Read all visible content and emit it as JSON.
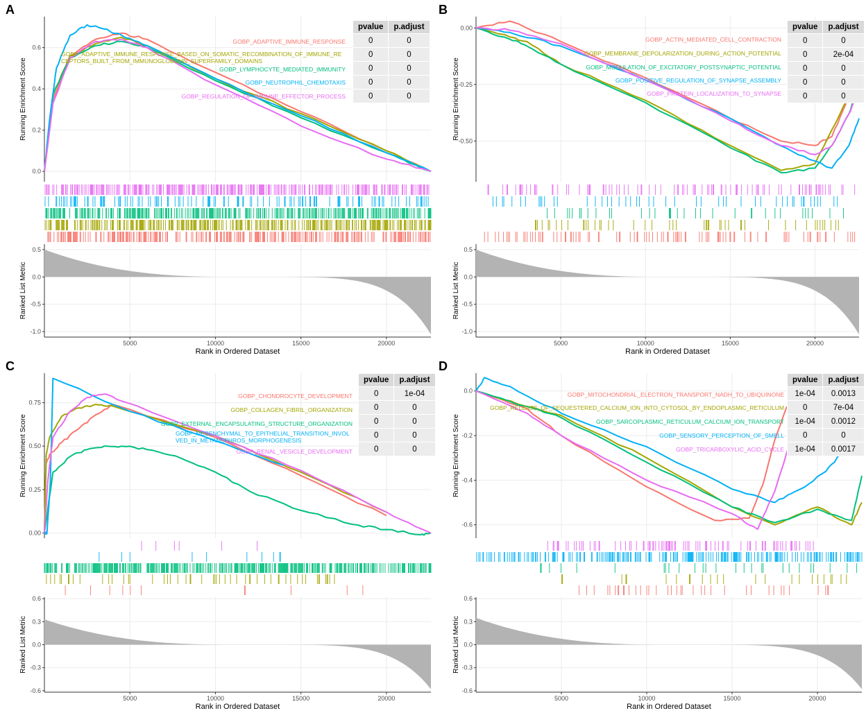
{
  "figure": {
    "colors": [
      "#f8766d",
      "#a3a500",
      "#00bf7d",
      "#00b0f6",
      "#e76bf3"
    ]
  },
  "chart_data": [
    {
      "type": "line",
      "panel": "A",
      "title": "",
      "ylabel": "Running Enrichment Score",
      "xlabel": "Rank in Ordered Dataset",
      "metric_ylabel": "Ranked List Metric",
      "xlim": [
        0,
        22600
      ],
      "ylim": [
        -0.05,
        0.75
      ],
      "yticks": [
        0.0,
        0.2,
        0.4,
        0.6
      ],
      "ytick_labels": [
        "0.0",
        "0.2",
        "0.4",
        "0.6"
      ],
      "xticks": [
        5000,
        10000,
        15000,
        20000
      ],
      "xtick_labels": [
        "5000",
        "10000",
        "15000",
        "20000"
      ],
      "metric_ylim": [
        -1.1,
        0.6
      ],
      "metric_yticks": [
        -1.0,
        -0.5,
        0.0,
        0.5
      ],
      "metric_ytick_labels": [
        "-1.0",
        "-0.5",
        "0.0",
        "0.5"
      ],
      "metric_pos": 0.5,
      "metric_neg": -1.05,
      "table_headers": [
        "pvalue",
        "p.adjust"
      ],
      "series": [
        {
          "name": "GOBP_ADAPTIVE_IMMUNE_RESPONSE",
          "pvalue": "0",
          "p_adjust": "0",
          "x": [
            0,
            500,
            1500,
            3000,
            4500,
            6000,
            10000,
            15000,
            20000,
            22600
          ],
          "y": [
            0,
            0.35,
            0.56,
            0.64,
            0.67,
            0.64,
            0.48,
            0.29,
            0.1,
            0.0
          ],
          "hit_density": 0.45,
          "hit_range": [
            0,
            22600
          ]
        },
        {
          "name": "GOBP_ADAPTIVE_IMMUNE_RESPONSE_BASED_ON_SOMATIC_RECOMBINATION_OF_IMMUNE_RECEPTORS_BUILT_FROM_IMMUNOGLOBULIN_SUPERFAMILY_DOMAINS",
          "pvalue": "0",
          "p_adjust": "0",
          "x": [
            0,
            500,
            1500,
            3000,
            4500,
            6000,
            10000,
            15000,
            20000,
            22600
          ],
          "y": [
            0,
            0.37,
            0.56,
            0.62,
            0.65,
            0.61,
            0.45,
            0.28,
            0.1,
            0.0
          ],
          "hit_density": 0.5,
          "hit_range": [
            0,
            22600
          ]
        },
        {
          "name": "GOBP_LYMPHOCYTE_MEDIATED_IMMUNITY",
          "pvalue": "0",
          "p_adjust": "0",
          "x": [
            0,
            500,
            1500,
            3000,
            4500,
            6000,
            10000,
            15000,
            20000,
            22600
          ],
          "y": [
            0,
            0.37,
            0.55,
            0.61,
            0.63,
            0.6,
            0.44,
            0.26,
            0.09,
            0.0
          ],
          "hit_density": 0.5,
          "hit_range": [
            0,
            22600
          ]
        },
        {
          "name": "GOBP_NEUTROPHIL_CHEMOTAXIS",
          "pvalue": "0",
          "p_adjust": "0",
          "x": [
            0,
            300,
            700,
            1500,
            2500,
            3500,
            4500,
            6000,
            10000,
            15000,
            20000,
            22600
          ],
          "y": [
            0,
            0.25,
            0.5,
            0.66,
            0.71,
            0.69,
            0.66,
            0.61,
            0.45,
            0.27,
            0.09,
            0.0
          ],
          "hit_density": 0.25,
          "hit_range": [
            0,
            22600
          ]
        },
        {
          "name": "GOBP_REGULATION_OF_IMMUNE_EFFECTOR_PROCESS",
          "pvalue": "0",
          "p_adjust": "0",
          "x": [
            0,
            500,
            1500,
            3000,
            4500,
            6000,
            10000,
            15000,
            20000,
            22600
          ],
          "y": [
            0,
            0.33,
            0.55,
            0.63,
            0.64,
            0.6,
            0.42,
            0.22,
            0.06,
            0.0
          ],
          "hit_density": 0.5,
          "hit_range": [
            0,
            22600
          ]
        }
      ]
    },
    {
      "type": "line",
      "panel": "B",
      "title": "",
      "ylabel": "Running Enrichment Score",
      "xlabel": "Rank in Ordered Dataset",
      "metric_ylabel": "Ranked List Metric",
      "xlim": [
        0,
        22600
      ],
      "ylim": [
        -0.68,
        0.05
      ],
      "yticks": [
        0.0,
        -0.25,
        -0.5
      ],
      "ytick_labels": [
        "0.00",
        "-0.25",
        "-0.50"
      ],
      "xticks": [
        5000,
        10000,
        15000,
        20000
      ],
      "xtick_labels": [
        "5000",
        "10000",
        "15000",
        "20000"
      ],
      "metric_ylim": [
        -1.1,
        0.6
      ],
      "metric_yticks": [
        -1.0,
        -0.5,
        0.0,
        0.5
      ],
      "metric_ytick_labels": [
        "-1.0",
        "-0.5",
        "0.0",
        "0.5"
      ],
      "metric_pos": 0.5,
      "metric_neg": -1.05,
      "table_headers": [
        "pvalue",
        "p.adjust"
      ],
      "series": [
        {
          "name": "GOBP_ACTIN_MEDIATED_CELL_CONTRACTION",
          "pvalue": "0",
          "p_adjust": "0",
          "x": [
            0,
            2000,
            5000,
            10000,
            15000,
            18000,
            20000,
            21000,
            22000,
            22600
          ],
          "y": [
            0,
            0.03,
            -0.06,
            -0.22,
            -0.4,
            -0.5,
            -0.52,
            -0.48,
            -0.3,
            -0.17
          ],
          "hit_density": 0.2,
          "hit_range": [
            500,
            22600
          ]
        },
        {
          "name": "GOBP_MEMBRANE_DEPOLARIZATION_DURING_ACTION_POTENTIAL",
          "pvalue": "0",
          "p_adjust": "2e-04",
          "x": [
            0,
            2000,
            3000,
            5000,
            10000,
            15000,
            18000,
            20000,
            21000,
            22000,
            22600
          ],
          "y": [
            0,
            -0.04,
            -0.06,
            -0.16,
            -0.32,
            -0.52,
            -0.63,
            -0.6,
            -0.45,
            -0.3,
            -0.18
          ],
          "hit_density": 0.1,
          "hit_range": [
            3500,
            22600
          ]
        },
        {
          "name": "GOBP_MODULATION_OF_EXCITATORY_POSTSYNAPTIC_POTENTIAL",
          "pvalue": "0",
          "p_adjust": "0",
          "x": [
            0,
            2000,
            3000,
            5000,
            10000,
            15000,
            18000,
            20000,
            21000,
            22000,
            22600
          ],
          "y": [
            0,
            -0.05,
            -0.08,
            -0.16,
            -0.33,
            -0.53,
            -0.64,
            -0.62,
            -0.52,
            -0.38,
            -0.25
          ],
          "hit_density": 0.07,
          "hit_range": [
            4200,
            22600
          ]
        },
        {
          "name": "GOBP_POSITIVE_REGULATION_OF_SYNAPSE_ASSEMBLY",
          "pvalue": "0",
          "p_adjust": "0",
          "x": [
            0,
            2000,
            5000,
            10000,
            15000,
            19000,
            21000,
            22000,
            22600
          ],
          "y": [
            0,
            -0.02,
            -0.08,
            -0.23,
            -0.4,
            -0.56,
            -0.62,
            -0.52,
            -0.4
          ],
          "hit_density": 0.12,
          "hit_range": [
            1000,
            22600
          ]
        },
        {
          "name": "GOBP_PROTEIN_LOCALIZATION_TO_SYNAPSE",
          "pvalue": "0",
          "p_adjust": "0",
          "x": [
            0,
            2000,
            5000,
            10000,
            15000,
            18000,
            20000,
            21000,
            22000,
            22600
          ],
          "y": [
            0,
            -0.01,
            -0.07,
            -0.23,
            -0.41,
            -0.52,
            -0.56,
            -0.52,
            -0.38,
            -0.28
          ],
          "hit_density": 0.15,
          "hit_range": [
            700,
            22600
          ]
        }
      ]
    },
    {
      "type": "line",
      "panel": "C",
      "title": "",
      "ylabel": "Running Enrichment Score",
      "xlabel": "Rank in Ordered Dataset",
      "metric_ylabel": "Ranked List Metric",
      "xlim": [
        0,
        22600
      ],
      "ylim": [
        -0.03,
        0.92
      ],
      "yticks": [
        0.0,
        0.25,
        0.5,
        0.75
      ],
      "ytick_labels": [
        "0.00",
        "0.25",
        "0.50",
        "0.75"
      ],
      "xticks": [
        5000,
        10000,
        15000,
        20000
      ],
      "xtick_labels": [
        "5000",
        "10000",
        "15000",
        "20000"
      ],
      "metric_ylim": [
        -0.62,
        0.62
      ],
      "metric_yticks": [
        -0.6,
        -0.3,
        0.0,
        0.3,
        0.6
      ],
      "metric_ytick_labels": [
        "-0.6",
        "-0.3",
        "0.0",
        "0.3",
        "0.6"
      ],
      "metric_pos": 0.33,
      "metric_neg": -0.58,
      "table_headers": [
        "pvalue",
        "p.adjust"
      ],
      "series": [
        {
          "name": "GOBP_CHONDROCYTE_DEVELOPMENT",
          "pvalue": "0",
          "p_adjust": "1e-04",
          "x": [
            0,
            100,
            300,
            1000,
            2000,
            3000,
            4000,
            10000,
            15000,
            20000
          ],
          "y": [
            0,
            0.4,
            0.45,
            0.52,
            0.6,
            0.68,
            0.74,
            0.55,
            0.33,
            0.1
          ],
          "hit_density": 0.02,
          "hit_range": [
            100,
            20000
          ]
        },
        {
          "name": "GOBP_COLLAGEN_FIBRIL_ORGANIZATION",
          "pvalue": "0",
          "p_adjust": "0",
          "x": [
            0,
            100,
            300,
            1000,
            2000,
            3000,
            4000,
            10000,
            15000,
            20000
          ],
          "y": [
            0,
            0.45,
            0.55,
            0.67,
            0.72,
            0.74,
            0.73,
            0.56,
            0.35,
            0.12
          ],
          "hit_density": 0.1,
          "hit_range": [
            0,
            17000
          ]
        },
        {
          "name": "GOBP_EXTERNAL_ENCAPSULATING_STRUCTURE_ORGANIZATION",
          "pvalue": "0",
          "p_adjust": "0",
          "x": [
            0,
            500,
            1500,
            2500,
            3500,
            4500,
            6000,
            8000,
            10000,
            12000,
            15000,
            18000,
            20000,
            22000,
            22600
          ],
          "y": [
            0,
            0.35,
            0.44,
            0.48,
            0.5,
            0.5,
            0.48,
            0.43,
            0.35,
            0.24,
            0.13,
            0.05,
            0.02,
            -0.01,
            0.0
          ],
          "hit_density": 0.6,
          "hit_range": [
            0,
            22600
          ]
        },
        {
          "name": "GOBP_MESENCHYMAL_TO_EPITHELIAL_TRANSITION_INVOLVED_IN_METANEPHROS_MORPHOGENESIS",
          "pvalue": "0",
          "p_adjust": "0",
          "x": [
            0,
            150,
            350,
            500,
            5000,
            10000,
            14000
          ],
          "y": [
            0,
            0.0,
            0.3,
            0.89,
            0.7,
            0.53,
            0.39
          ],
          "hit_density": 0.02,
          "hit_range": [
            200,
            14000
          ]
        },
        {
          "name": "GOBP_RENAL_VESICLE_DEVELOPMENT",
          "pvalue": "0",
          "p_adjust": "0",
          "x": [
            0,
            200,
            500,
            1500,
            2500,
            3500,
            4500,
            10000,
            15000,
            20000,
            22600
          ],
          "y": [
            0,
            0.3,
            0.55,
            0.7,
            0.78,
            0.8,
            0.76,
            0.56,
            0.36,
            0.12,
            0.0
          ],
          "hit_density": 0.02,
          "hit_range": [
            200,
            14000
          ]
        }
      ]
    },
    {
      "type": "line",
      "panel": "D",
      "title": "",
      "ylabel": "Running Enrichment Score",
      "xlabel": "Rank in Ordered Dataset",
      "metric_ylabel": "Ranked List Metric",
      "xlim": [
        0,
        22600
      ],
      "ylim": [
        -0.66,
        0.08
      ],
      "yticks": [
        0.0,
        -0.2,
        -0.4,
        -0.6
      ],
      "ytick_labels": [
        "0.0",
        "-0.2",
        "-0.4",
        "-0.6"
      ],
      "xticks": [
        5000,
        10000,
        15000,
        20000
      ],
      "xtick_labels": [
        "5000",
        "10000",
        "15000",
        "20000"
      ],
      "metric_ylim": [
        -0.62,
        0.62
      ],
      "metric_yticks": [
        -0.6,
        -0.3,
        0.0,
        0.3,
        0.6
      ],
      "metric_ytick_labels": [
        "-0.6",
        "-0.3",
        "0.0",
        "0.3",
        "0.6"
      ],
      "metric_pos": 0.35,
      "metric_neg": -0.58,
      "table_headers": [
        "pvalue",
        "p.adjust"
      ],
      "series": [
        {
          "name": "GOBP_MITOCHONDRIAL_ELECTRON_TRANSPORT_NADH_TO_UBIQUINONE",
          "pvalue": "1e-04",
          "p_adjust": "0.0013",
          "x": [
            0,
            3000,
            5000,
            10000,
            14000,
            16000,
            16800,
            17500,
            18200
          ],
          "y": [
            0,
            -0.08,
            -0.2,
            -0.43,
            -0.58,
            -0.57,
            -0.42,
            -0.22,
            -0.07
          ],
          "hit_density": 0.1,
          "hit_range": [
            6000,
            21000
          ]
        },
        {
          "name": "GOBP_RELEASE_OF_SEQUESTERED_CALCIUM_ION_INTO_CYTOSOL_BY_ENDOPLASMIC_RETICULUM",
          "pvalue": "0",
          "p_adjust": "7e-04",
          "x": [
            0,
            3000,
            5000,
            10000,
            15000,
            17500,
            20000,
            22000,
            22600
          ],
          "y": [
            0,
            -0.07,
            -0.11,
            -0.3,
            -0.52,
            -0.6,
            -0.52,
            -0.6,
            -0.5
          ],
          "hit_density": 0.06,
          "hit_range": [
            3500,
            22600
          ]
        },
        {
          "name": "GOBP_SARCOPLASMIC_RETICULUM_CALCIUM_ION_TRANSPORT",
          "pvalue": "1e-04",
          "p_adjust": "0.0012",
          "x": [
            0,
            3000,
            5000,
            10000,
            15000,
            17500,
            20000,
            22000,
            22600
          ],
          "y": [
            0,
            -0.07,
            -0.12,
            -0.32,
            -0.52,
            -0.59,
            -0.53,
            -0.58,
            -0.38
          ],
          "hit_density": 0.06,
          "hit_range": [
            3500,
            22600
          ]
        },
        {
          "name": "GOBP_SENSORY_PERCEPTION_OF_SMELL",
          "pvalue": "0",
          "p_adjust": "0",
          "x": [
            0,
            500,
            2000,
            5000,
            10000,
            15000,
            17500,
            19000,
            20500,
            21500
          ],
          "y": [
            0,
            0.06,
            0.02,
            -0.1,
            -0.25,
            -0.44,
            -0.5,
            -0.44,
            -0.36,
            -0.27
          ],
          "hit_density": 0.35,
          "hit_range": [
            0,
            22600
          ]
        },
        {
          "name": "GOBP_TRICARBOXYLIC_ACID_CYCLE",
          "pvalue": "1e-04",
          "p_adjust": "0.0017",
          "x": [
            0,
            3000,
            5000,
            10000,
            15000,
            16500,
            17500,
            18300
          ],
          "y": [
            0,
            -0.1,
            -0.2,
            -0.4,
            -0.55,
            -0.62,
            -0.45,
            -0.25
          ],
          "hit_density": 0.2,
          "hit_range": [
            4000,
            20000
          ]
        }
      ]
    }
  ]
}
